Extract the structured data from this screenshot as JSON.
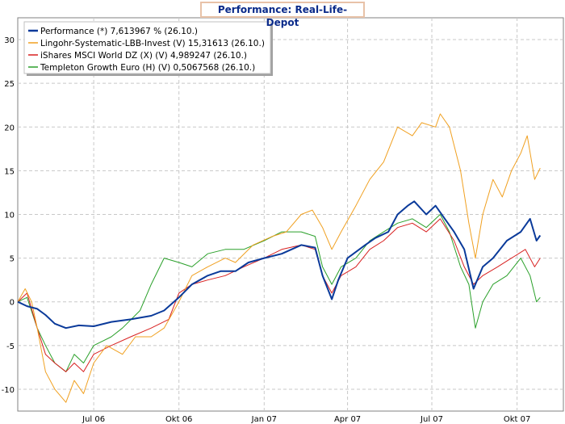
{
  "chart_data": {
    "type": "line",
    "title": "Performance: Real-Life-Depot",
    "ylim": [
      -12.5,
      32.5
    ],
    "yticks": [
      -10,
      -5,
      0,
      5,
      10,
      15,
      20,
      25,
      30
    ],
    "xlim": [
      "2006-04-10",
      "2007-11-20"
    ],
    "xticks": [
      {
        "date": "2006-07-01",
        "label": "Jul 06"
      },
      {
        "date": "2006-10-01",
        "label": "Okt 06"
      },
      {
        "date": "2007-01-01",
        "label": "Jan 07"
      },
      {
        "date": "2007-04-01",
        "label": "Apr 07"
      },
      {
        "date": "2007-07-01",
        "label": "Jul 07"
      },
      {
        "date": "2007-10-01",
        "label": "Okt 07"
      }
    ],
    "grid": true,
    "legend_position": "top-left",
    "series": [
      {
        "name": "Performance (*) 7,613967 % (26.10.)",
        "color": "#0a3a9a",
        "width": 2,
        "points": [
          [
            "2006-04-10",
            0
          ],
          [
            "2006-04-20",
            -0.5
          ],
          [
            "2006-05-01",
            -0.8
          ],
          [
            "2006-05-10",
            -1.5
          ],
          [
            "2006-05-20",
            -2.5
          ],
          [
            "2006-06-01",
            -3
          ],
          [
            "2006-06-15",
            -2.7
          ],
          [
            "2006-07-01",
            -2.8
          ],
          [
            "2006-07-20",
            -2.3
          ],
          [
            "2006-08-10",
            -2
          ],
          [
            "2006-09-01",
            -1.6
          ],
          [
            "2006-09-15",
            -1
          ],
          [
            "2006-10-01",
            0.5
          ],
          [
            "2006-10-15",
            2
          ],
          [
            "2006-11-01",
            3
          ],
          [
            "2006-11-15",
            3.5
          ],
          [
            "2006-12-01",
            3.5
          ],
          [
            "2006-12-15",
            4.5
          ],
          [
            "2007-01-01",
            5
          ],
          [
            "2007-01-20",
            5.5
          ],
          [
            "2007-02-10",
            6.5
          ],
          [
            "2007-02-25",
            6.2
          ],
          [
            "2007-03-05",
            3
          ],
          [
            "2007-03-15",
            0.3
          ],
          [
            "2007-03-22",
            2.5
          ],
          [
            "2007-04-01",
            5
          ],
          [
            "2007-04-20",
            6.5
          ],
          [
            "2007-05-01",
            7.3
          ],
          [
            "2007-05-15",
            8
          ],
          [
            "2007-05-25",
            10
          ],
          [
            "2007-06-05",
            11
          ],
          [
            "2007-06-12",
            11.5
          ],
          [
            "2007-06-25",
            10
          ],
          [
            "2007-07-05",
            11
          ],
          [
            "2007-07-15",
            9.5
          ],
          [
            "2007-07-25",
            8
          ],
          [
            "2007-08-05",
            6
          ],
          [
            "2007-08-15",
            1.5
          ],
          [
            "2007-08-25",
            4
          ],
          [
            "2007-09-05",
            5
          ],
          [
            "2007-09-20",
            7
          ],
          [
            "2007-10-05",
            8
          ],
          [
            "2007-10-15",
            9.5
          ],
          [
            "2007-10-22",
            7
          ],
          [
            "2007-10-26",
            7.6
          ]
        ]
      },
      {
        "name": "Lingohr-Systematic-LBB-Invest (V) 15,31613 (26.10.)",
        "color": "#f0a020",
        "width": 1,
        "points": [
          [
            "2006-04-10",
            0
          ],
          [
            "2006-04-18",
            1.5
          ],
          [
            "2006-04-25",
            0
          ],
          [
            "2006-05-01",
            -3
          ],
          [
            "2006-05-10",
            -8
          ],
          [
            "2006-05-20",
            -10
          ],
          [
            "2006-06-01",
            -11.5
          ],
          [
            "2006-06-10",
            -9
          ],
          [
            "2006-06-20",
            -10.5
          ],
          [
            "2006-07-01",
            -7
          ],
          [
            "2006-07-15",
            -5
          ],
          [
            "2006-08-01",
            -6
          ],
          [
            "2006-08-15",
            -4
          ],
          [
            "2006-09-01",
            -4
          ],
          [
            "2006-09-15",
            -3
          ],
          [
            "2006-10-01",
            0
          ],
          [
            "2006-10-15",
            3
          ],
          [
            "2006-11-01",
            4
          ],
          [
            "2006-11-20",
            5
          ],
          [
            "2006-12-01",
            4.5
          ],
          [
            "2006-12-20",
            6.5
          ],
          [
            "2007-01-10",
            7.5
          ],
          [
            "2007-01-25",
            8
          ],
          [
            "2007-02-10",
            10
          ],
          [
            "2007-02-22",
            10.5
          ],
          [
            "2007-03-05",
            8.5
          ],
          [
            "2007-03-15",
            6
          ],
          [
            "2007-03-25",
            8
          ],
          [
            "2007-04-10",
            11
          ],
          [
            "2007-04-25",
            14
          ],
          [
            "2007-05-10",
            16
          ],
          [
            "2007-05-25",
            20
          ],
          [
            "2007-06-10",
            19
          ],
          [
            "2007-06-20",
            20.5
          ],
          [
            "2007-07-05",
            20
          ],
          [
            "2007-07-10",
            21.5
          ],
          [
            "2007-07-20",
            20
          ],
          [
            "2007-08-01",
            15
          ],
          [
            "2007-08-10",
            9
          ],
          [
            "2007-08-17",
            5
          ],
          [
            "2007-08-25",
            10
          ],
          [
            "2007-09-05",
            14
          ],
          [
            "2007-09-15",
            12
          ],
          [
            "2007-09-25",
            15
          ],
          [
            "2007-10-05",
            17
          ],
          [
            "2007-10-12",
            19
          ],
          [
            "2007-10-20",
            14
          ],
          [
            "2007-10-26",
            15.3
          ]
        ]
      },
      {
        "name": "iShares MSCI World DZ (X) (V) 4,989247 (26.10.)",
        "color": "#d82020",
        "width": 1,
        "points": [
          [
            "2006-04-10",
            0
          ],
          [
            "2006-04-20",
            1
          ],
          [
            "2006-05-01",
            -3
          ],
          [
            "2006-05-10",
            -6
          ],
          [
            "2006-05-20",
            -7
          ],
          [
            "2006-06-01",
            -8
          ],
          [
            "2006-06-10",
            -7
          ],
          [
            "2006-06-20",
            -8
          ],
          [
            "2006-07-01",
            -6
          ],
          [
            "2006-07-20",
            -5
          ],
          [
            "2006-08-10",
            -4
          ],
          [
            "2006-09-01",
            -3
          ],
          [
            "2006-09-20",
            -2
          ],
          [
            "2006-10-01",
            1
          ],
          [
            "2006-10-15",
            2
          ],
          [
            "2006-11-01",
            2.5
          ],
          [
            "2006-11-20",
            3
          ],
          [
            "2006-12-10",
            4
          ],
          [
            "2007-01-01",
            5
          ],
          [
            "2007-01-20",
            6
          ],
          [
            "2007-02-10",
            6.5
          ],
          [
            "2007-02-25",
            6
          ],
          [
            "2007-03-05",
            3
          ],
          [
            "2007-03-15",
            1
          ],
          [
            "2007-03-25",
            3
          ],
          [
            "2007-04-10",
            4
          ],
          [
            "2007-04-25",
            6
          ],
          [
            "2007-05-10",
            7
          ],
          [
            "2007-05-25",
            8.5
          ],
          [
            "2007-06-10",
            9
          ],
          [
            "2007-06-25",
            8
          ],
          [
            "2007-07-10",
            9.5
          ],
          [
            "2007-07-25",
            7
          ],
          [
            "2007-08-05",
            4
          ],
          [
            "2007-08-15",
            2
          ],
          [
            "2007-08-25",
            3
          ],
          [
            "2007-09-10",
            4
          ],
          [
            "2007-09-25",
            5
          ],
          [
            "2007-10-10",
            6
          ],
          [
            "2007-10-20",
            4
          ],
          [
            "2007-10-26",
            5
          ]
        ]
      },
      {
        "name": "Templeton Growth Euro (H) (V) 0,5067568 (26.10.)",
        "color": "#2aa02a",
        "width": 1,
        "points": [
          [
            "2006-04-10",
            0
          ],
          [
            "2006-04-20",
            0.5
          ],
          [
            "2006-05-01",
            -3
          ],
          [
            "2006-05-10",
            -5
          ],
          [
            "2006-05-20",
            -7
          ],
          [
            "2006-06-01",
            -8
          ],
          [
            "2006-06-10",
            -6
          ],
          [
            "2006-06-20",
            -7
          ],
          [
            "2006-07-01",
            -5
          ],
          [
            "2006-07-20",
            -4
          ],
          [
            "2006-08-01",
            -3
          ],
          [
            "2006-08-20",
            -1
          ],
          [
            "2006-09-01",
            2
          ],
          [
            "2006-09-15",
            5
          ],
          [
            "2006-10-01",
            4.5
          ],
          [
            "2006-10-15",
            4
          ],
          [
            "2006-11-01",
            5.5
          ],
          [
            "2006-11-20",
            6
          ],
          [
            "2006-12-10",
            6
          ],
          [
            "2007-01-01",
            7
          ],
          [
            "2007-01-20",
            8
          ],
          [
            "2007-02-10",
            8
          ],
          [
            "2007-02-25",
            7.5
          ],
          [
            "2007-03-05",
            4
          ],
          [
            "2007-03-15",
            2
          ],
          [
            "2007-03-25",
            4
          ],
          [
            "2007-04-10",
            5
          ],
          [
            "2007-04-25",
            7
          ],
          [
            "2007-05-10",
            8
          ],
          [
            "2007-05-25",
            9
          ],
          [
            "2007-06-10",
            9.5
          ],
          [
            "2007-06-25",
            8.5
          ],
          [
            "2007-07-10",
            10
          ],
          [
            "2007-07-20",
            8
          ],
          [
            "2007-08-01",
            4
          ],
          [
            "2007-08-10",
            2
          ],
          [
            "2007-08-17",
            -3
          ],
          [
            "2007-08-25",
            0
          ],
          [
            "2007-09-05",
            2
          ],
          [
            "2007-09-20",
            3
          ],
          [
            "2007-10-05",
            5
          ],
          [
            "2007-10-15",
            3
          ],
          [
            "2007-10-22",
            0
          ],
          [
            "2007-10-26",
            0.5
          ]
        ]
      }
    ]
  }
}
